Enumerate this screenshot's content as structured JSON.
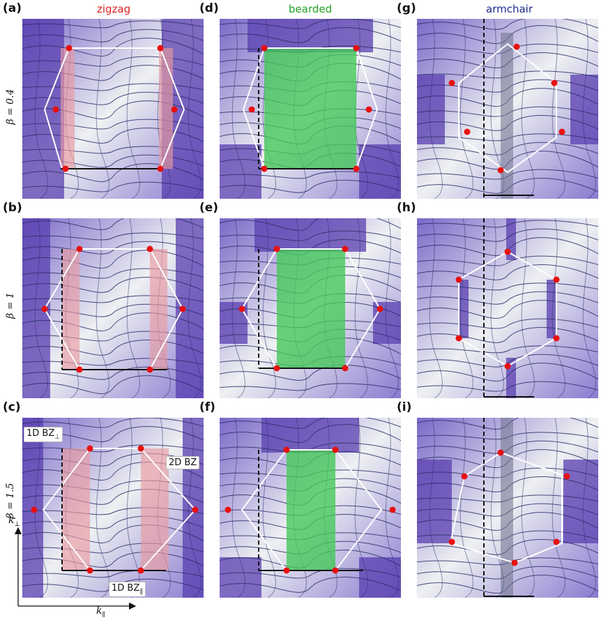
{
  "columns": [
    {
      "title": "zigzag",
      "color": "#e02020"
    },
    {
      "title": "bearded",
      "color": "#22a022"
    },
    {
      "title": "armchair",
      "color": "#1e2a8c"
    }
  ],
  "rows": [
    {
      "beta_label": "β = 0.4"
    },
    {
      "beta_label": "β = 1"
    },
    {
      "beta_label": "β = 1.5"
    }
  ],
  "panels": [
    {
      "label": "(a)",
      "edge": "zigzag"
    },
    {
      "label": "(d)",
      "edge": "bearded"
    },
    {
      "label": "(g)",
      "edge": "armchair"
    },
    {
      "label": "(b)",
      "edge": "zigzag"
    },
    {
      "label": "(e)",
      "edge": "bearded"
    },
    {
      "label": "(h)",
      "edge": "armchair"
    },
    {
      "label": "(c)",
      "edge": "zigzag"
    },
    {
      "label": "(f)",
      "edge": "bearded"
    },
    {
      "label": "(i)",
      "edge": "armchair"
    }
  ],
  "annotations": {
    "bz_perp": "1D BZ",
    "bz_perp_sub": "⊥",
    "bz_2d": "2D BZ",
    "bz_par": "1D BZ",
    "bz_par_sub": "∥"
  },
  "axes": {
    "k_perp": "k",
    "k_perp_sub": "⊥",
    "k_par": "k",
    "k_par_sub": "∥"
  },
  "colors": {
    "field_dark": "#5a3fb0",
    "field_light": "#eef0f2",
    "streamline": "#2a2f6a",
    "dirac_point": "#e81010",
    "bz_outline": "#ffffff",
    "zigzag_fill": "#e89aa0",
    "bearded_fill": "#46c85a",
    "armchair_fill": "#6c7088"
  }
}
